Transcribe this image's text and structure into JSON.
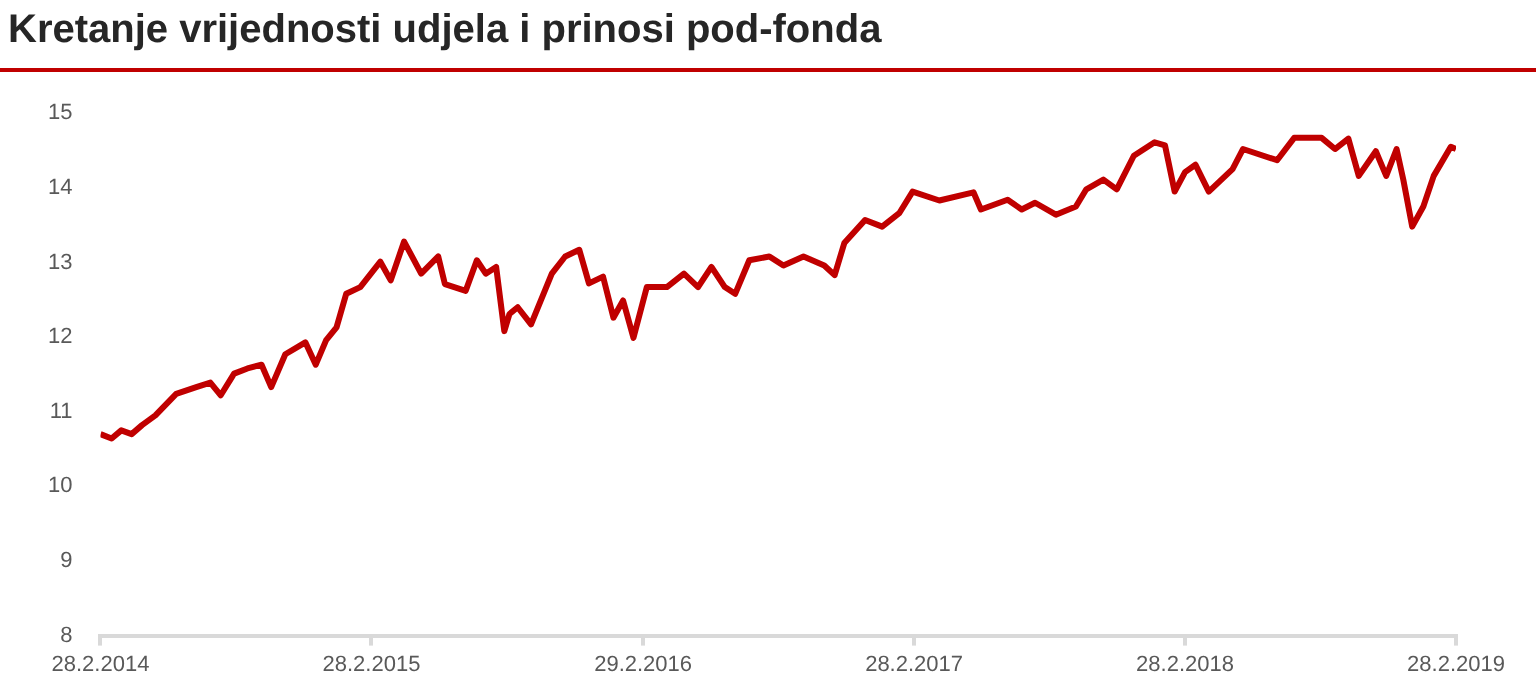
{
  "chart_data": {
    "type": "line",
    "title": "Kretanje vrijednosti udjela i prinosi pod-fonda",
    "xlim": [
      "2014-02-28",
      "2019-02-28"
    ],
    "xticks": [
      {
        "value": "2014-02-28",
        "label": "28.2.2014"
      },
      {
        "value": "2015-02-28",
        "label": "28.2.2015"
      },
      {
        "value": "2016-02-29",
        "label": "29.2.2016"
      },
      {
        "value": "2017-02-28",
        "label": "28.2.2017"
      },
      {
        "value": "2018-02-28",
        "label": "28.2.2018"
      },
      {
        "value": "2019-02-28",
        "label": "28.2.2019"
      }
    ],
    "ylim": [
      8,
      15
    ],
    "yticks": [
      8,
      9,
      10,
      11,
      12,
      13,
      14,
      15
    ],
    "grid": false,
    "x": [
      "2014-02-28",
      "2014-03-15",
      "2014-03-28",
      "2014-04-11",
      "2014-04-25",
      "2014-05-13",
      "2014-06-10",
      "2014-07-07",
      "2014-07-26",
      "2014-08-09",
      "2014-08-27",
      "2014-09-14",
      "2014-10-03",
      "2014-10-16",
      "2014-11-04",
      "2014-12-01",
      "2014-12-15",
      "2014-12-29",
      "2015-01-12",
      "2015-01-25",
      "2015-02-13",
      "2015-03-12",
      "2015-03-26",
      "2015-04-13",
      "2015-05-06",
      "2015-05-29",
      "2015-06-07",
      "2015-07-05",
      "2015-07-20",
      "2015-08-01",
      "2015-08-15",
      "2015-08-26",
      "2015-09-02",
      "2015-09-13",
      "2015-10-01",
      "2015-10-29",
      "2015-11-16",
      "2015-12-05",
      "2015-12-18",
      "2016-01-06",
      "2016-01-20",
      "2016-02-02",
      "2016-02-16",
      "2016-03-05",
      "2016-04-01",
      "2016-04-24",
      "2016-05-13",
      "2016-05-31",
      "2016-06-18",
      "2016-07-02",
      "2016-07-21",
      "2016-08-17",
      "2016-09-05",
      "2016-10-02",
      "2016-10-30",
      "2016-11-13",
      "2016-11-26",
      "2016-12-24",
      "2017-01-16",
      "2017-02-08",
      "2017-02-26",
      "2017-04-03",
      "2017-05-19",
      "2017-05-29",
      "2017-07-04",
      "2017-07-23",
      "2017-08-10",
      "2017-09-07",
      "2017-10-04",
      "2017-10-18",
      "2017-11-10",
      "2017-11-28",
      "2017-12-21",
      "2018-01-18",
      "2018-02-01",
      "2018-02-14",
      "2018-02-28",
      "2018-03-14",
      "2018-04-01",
      "2018-05-03",
      "2018-05-17",
      "2018-07-02",
      "2018-07-25",
      "2018-08-31",
      "2018-09-18",
      "2018-10-06",
      "2018-10-20",
      "2018-11-12",
      "2018-11-26",
      "2018-12-10",
      "2018-12-19",
      "2018-12-31",
      "2019-01-15",
      "2019-01-29",
      "2019-02-21",
      "2019-02-28"
    ],
    "series": [
      {
        "color": "#c00000",
        "values": [
          10.7,
          10.64,
          10.75,
          10.7,
          10.82,
          10.95,
          11.24,
          11.33,
          11.39,
          11.22,
          11.51,
          11.58,
          11.63,
          11.33,
          11.77,
          11.93,
          11.63,
          11.96,
          12.13,
          12.58,
          12.67,
          13.01,
          12.76,
          13.28,
          12.85,
          13.08,
          12.71,
          12.62,
          13.03,
          12.85,
          12.94,
          12.08,
          12.31,
          12.4,
          12.17,
          12.85,
          13.08,
          13.17,
          12.72,
          12.81,
          12.26,
          12.49,
          11.99,
          12.67,
          12.67,
          12.85,
          12.67,
          12.94,
          12.67,
          12.58,
          13.03,
          13.08,
          12.96,
          13.08,
          12.96,
          12.83,
          13.26,
          13.57,
          13.48,
          13.66,
          13.95,
          13.83,
          13.94,
          13.71,
          13.84,
          13.71,
          13.8,
          13.64,
          13.75,
          13.98,
          14.11,
          13.98,
          14.43,
          14.61,
          14.57,
          13.95,
          14.21,
          14.31,
          13.95,
          14.25,
          14.52,
          14.37,
          14.67,
          14.67,
          14.52,
          14.66,
          14.16,
          14.49,
          14.16,
          14.52,
          14.11,
          13.48,
          13.75,
          14.16,
          14.55,
          14.52
        ]
      }
    ]
  }
}
